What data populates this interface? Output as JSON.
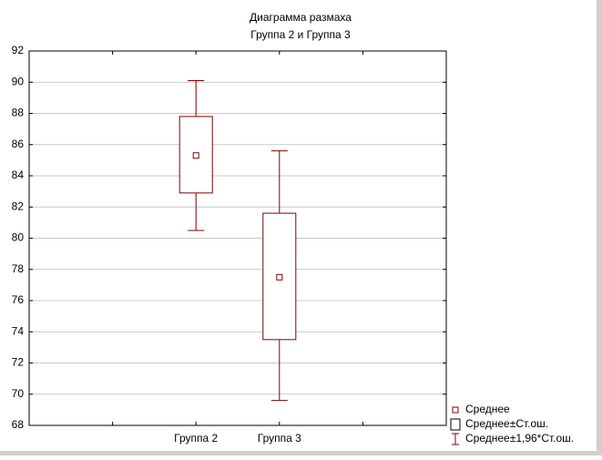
{
  "chart_data": {
    "type": "box",
    "title": "Диаграмма размаха",
    "subtitle": "Группа 2  и  Группа 3",
    "categories": [
      "Группа 2",
      "Группа 3"
    ],
    "mean": [
      85.3,
      77.5
    ],
    "box_low": [
      82.9,
      73.5
    ],
    "box_high": [
      87.8,
      81.6
    ],
    "whisker_low": [
      80.5,
      69.6
    ],
    "whisker_high": [
      90.1,
      85.6
    ],
    "color": "#800000",
    "ylim": [
      68,
      92
    ],
    "yticks": [
      68,
      70,
      72,
      74,
      76,
      78,
      80,
      82,
      84,
      86,
      88,
      90,
      92
    ],
    "grid": true,
    "legend": [
      "Среднее",
      "Среднее±Ст.ош.",
      "Среднее±1,96*Ст.ош."
    ],
    "legend_position": "bottom-right"
  }
}
